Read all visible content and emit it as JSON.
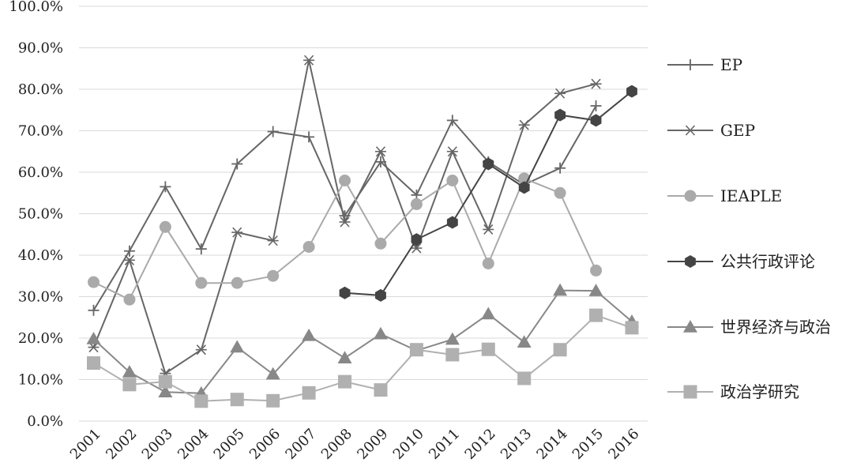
{
  "chart_data": {
    "type": "line",
    "x": [
      "2001",
      "2002",
      "2003",
      "2004",
      "2005",
      "2006",
      "2007",
      "2008",
      "2009",
      "2010",
      "2011",
      "2012",
      "2013",
      "2014",
      "2015",
      "2016"
    ],
    "ylim": [
      0,
      100
    ],
    "y_ticks": [
      0,
      10,
      20,
      30,
      40,
      50,
      60,
      70,
      80,
      90,
      100
    ],
    "y_tick_labels": [
      "0.0%",
      "10.0%",
      "20.0%",
      "30.0%",
      "40.0%",
      "50.0%",
      "60.0%",
      "70.0%",
      "80.0%",
      "90.0%",
      "100.0%"
    ],
    "grid": true,
    "legend_position": "right",
    "series": [
      {
        "name": "EP",
        "marker": "plus",
        "color": "#666666",
        "values": [
          26.7,
          41.0,
          56.5,
          41.5,
          62.0,
          69.8,
          68.5,
          49.5,
          62.5,
          54.5,
          72.5,
          62.5,
          57.0,
          61.0,
          76.0,
          null
        ]
      },
      {
        "name": "GEP",
        "marker": "star",
        "color": "#666666",
        "values": [
          17.8,
          38.8,
          11.5,
          17.2,
          45.5,
          43.5,
          87.0,
          48.0,
          65.0,
          41.7,
          65.0,
          46.2,
          71.4,
          79.0,
          81.3,
          null
        ]
      },
      {
        "name": "IEAPLE",
        "marker": "circle",
        "color": "#aaaaaa",
        "values": [
          33.5,
          29.3,
          46.8,
          33.3,
          33.3,
          35.0,
          42.0,
          58.0,
          42.8,
          52.3,
          58.0,
          38.0,
          58.5,
          55.0,
          36.3,
          null
        ]
      },
      {
        "name": "公共行政评论",
        "marker": "hexagon",
        "color": "#444444",
        "values": [
          null,
          null,
          null,
          null,
          null,
          null,
          null,
          30.9,
          30.3,
          43.8,
          47.9,
          62.0,
          56.3,
          73.8,
          72.5,
          79.5
        ]
      },
      {
        "name": "世界经济与政治",
        "marker": "triangle",
        "color": "#888888",
        "values": [
          19.8,
          11.8,
          7.0,
          6.7,
          17.8,
          11.3,
          20.6,
          15.2,
          21.0,
          17.0,
          19.7,
          25.8,
          19.0,
          31.5,
          31.4,
          24.0
        ]
      },
      {
        "name": "政治学研究",
        "marker": "square",
        "color": "#b0b0b0",
        "values": [
          14.0,
          8.8,
          9.5,
          4.8,
          5.2,
          4.9,
          6.8,
          9.5,
          7.5,
          17.2,
          16.0,
          17.3,
          10.3,
          17.2,
          25.5,
          22.5
        ]
      }
    ]
  }
}
